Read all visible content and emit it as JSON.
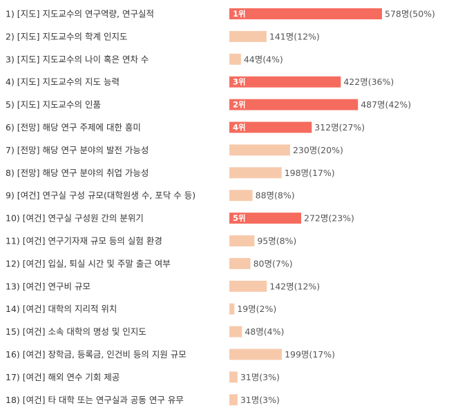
{
  "chart_data": {
    "type": "bar",
    "orientation": "horizontal",
    "unit": "명",
    "categories": [
      "1) [지도] 지도교수의 연구역량, 연구실적",
      "2) [지도] 지도교수의 학계 인지도",
      "3) [지도] 지도교수의 나이 혹은 연차 수",
      "4) [지도] 지도교수의 지도 능력",
      "5) [지도] 지도교수의 인품",
      "6) [전망] 해당 연구 주제에 대한 흥미",
      "7) [전망] 해당 연구 분야의 발전 가능성",
      "8) [전망] 해당 연구 분야의 취업 가능성",
      "9) [여건] 연구실 구성 규모(대학원생 수, 포닥 수 등)",
      "10) [여건] 연구실 구성원 간의 분위기",
      "11) [여건] 연구기자재 규모 등의 실험 환경",
      "12) [여건] 입실, 퇴실 시간 및 주말 출근 여부",
      "13) [여건] 연구비 규모",
      "14) [여건] 대학의 지리적 위치",
      "15) [여건] 소속 대학의 명성 및 인지도",
      "16) [여건] 장학금, 등록금, 인건비 등의 지원 규모",
      "17) [여건] 해외 연수 기회 제공",
      "18) [여건] 타 대학 또는 연구실과 공동 연구 유무"
    ],
    "values": [
      578,
      141,
      44,
      422,
      487,
      312,
      230,
      198,
      88,
      272,
      95,
      80,
      142,
      19,
      48,
      199,
      31,
      31
    ],
    "value_labels": [
      "578명(50%)",
      "141명(12%)",
      "44명(4%)",
      "422명(36%)",
      "487명(42%)",
      "312명(27%)",
      "230명(20%)",
      "198명(17%)",
      "88명(8%)",
      "272명(23%)",
      "95명(8%)",
      "80명(7%)",
      "142명(12%)",
      "19명(2%)",
      "48명(4%)",
      "199명(17%)",
      "31명(3%)",
      "31명(3%)"
    ],
    "ranks": [
      "1위",
      "",
      "",
      "3위",
      "2위",
      "4위",
      "",
      "",
      "",
      "5위",
      "",
      "",
      "",
      "",
      "",
      "",
      "",
      ""
    ],
    "xlim": [
      0,
      578
    ],
    "colors": {
      "top": "#f56b5e",
      "other": "#f7c9ab"
    },
    "grid": false,
    "legend": "none"
  }
}
